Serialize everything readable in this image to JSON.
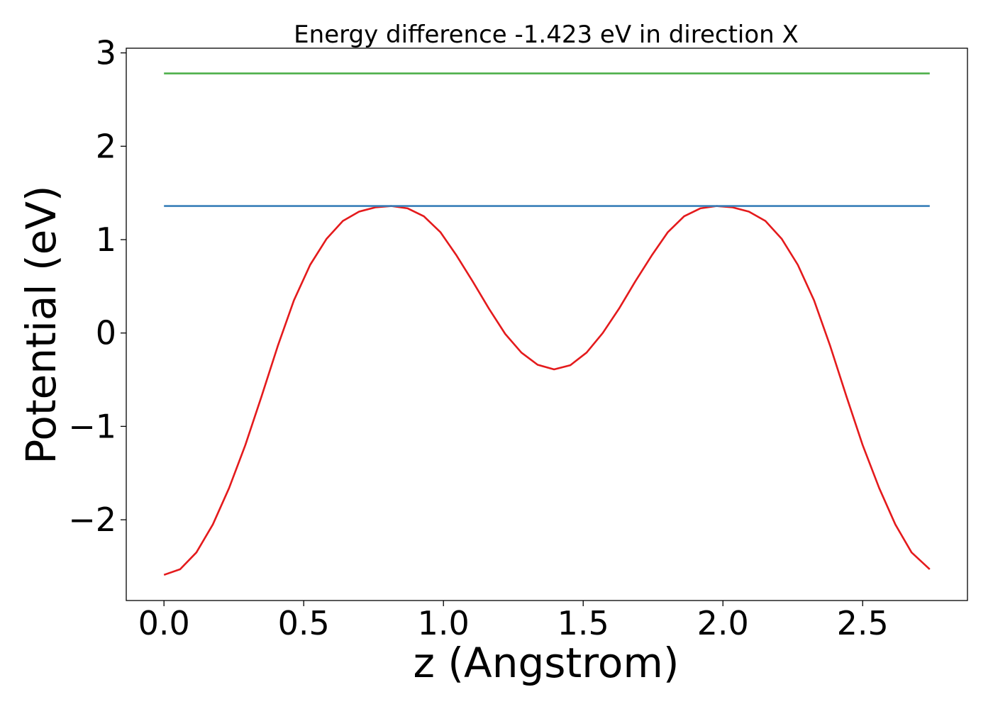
{
  "chart_data": {
    "type": "line",
    "title": "Energy difference -1.423 eV in direction X",
    "xlabel": "z (Angstrom)",
    "ylabel": "Potential (eV)",
    "xlim": [
      -0.135,
      2.875
    ],
    "ylim": [
      -2.865,
      3.05
    ],
    "xticks": [
      0.0,
      0.5,
      1.0,
      1.5,
      2.0,
      2.5
    ],
    "xtick_labels": [
      "0.0",
      "0.5",
      "1.0",
      "1.5",
      "2.0",
      "2.5"
    ],
    "yticks": [
      -2,
      -1,
      0,
      1,
      2,
      3
    ],
    "ytick_labels": [
      "−2",
      "−1",
      "0",
      "1",
      "2",
      "3"
    ],
    "grid": false,
    "legend": false,
    "series": [
      {
        "color": "#e41a1c",
        "x": [
          0.0,
          0.058,
          0.116,
          0.175,
          0.233,
          0.291,
          0.349,
          0.407,
          0.465,
          0.523,
          0.582,
          0.64,
          0.698,
          0.756,
          0.814,
          0.872,
          0.93,
          0.989,
          1.047,
          1.105,
          1.163,
          1.221,
          1.279,
          1.337,
          1.396,
          1.454,
          1.512,
          1.57,
          1.628,
          1.686,
          1.745,
          1.803,
          1.861,
          1.919,
          1.977,
          2.035,
          2.093,
          2.152,
          2.21,
          2.268,
          2.326,
          2.384,
          2.442,
          2.5,
          2.559,
          2.617,
          2.675,
          2.74
        ],
        "y": [
          -2.59,
          -2.53,
          -2.35,
          -2.05,
          -1.66,
          -1.2,
          -0.68,
          -0.14,
          0.35,
          0.73,
          1.01,
          1.2,
          1.3,
          1.345,
          1.36,
          1.335,
          1.25,
          1.08,
          0.83,
          0.55,
          0.26,
          -0.01,
          -0.21,
          -0.34,
          -0.39,
          -0.345,
          -0.21,
          0.0,
          0.26,
          0.55,
          0.83,
          1.08,
          1.25,
          1.335,
          1.36,
          1.345,
          1.3,
          1.2,
          1.01,
          0.73,
          0.35,
          -0.14,
          -0.68,
          -1.2,
          -1.66,
          -2.05,
          -2.35,
          -2.53
        ]
      },
      {
        "color": "#377eb8",
        "x": [
          0.0,
          2.74
        ],
        "y": [
          1.36,
          1.36
        ]
      },
      {
        "color": "#4daf4a",
        "x": [
          0.0,
          2.74
        ],
        "y": [
          2.78,
          2.78
        ]
      }
    ]
  }
}
